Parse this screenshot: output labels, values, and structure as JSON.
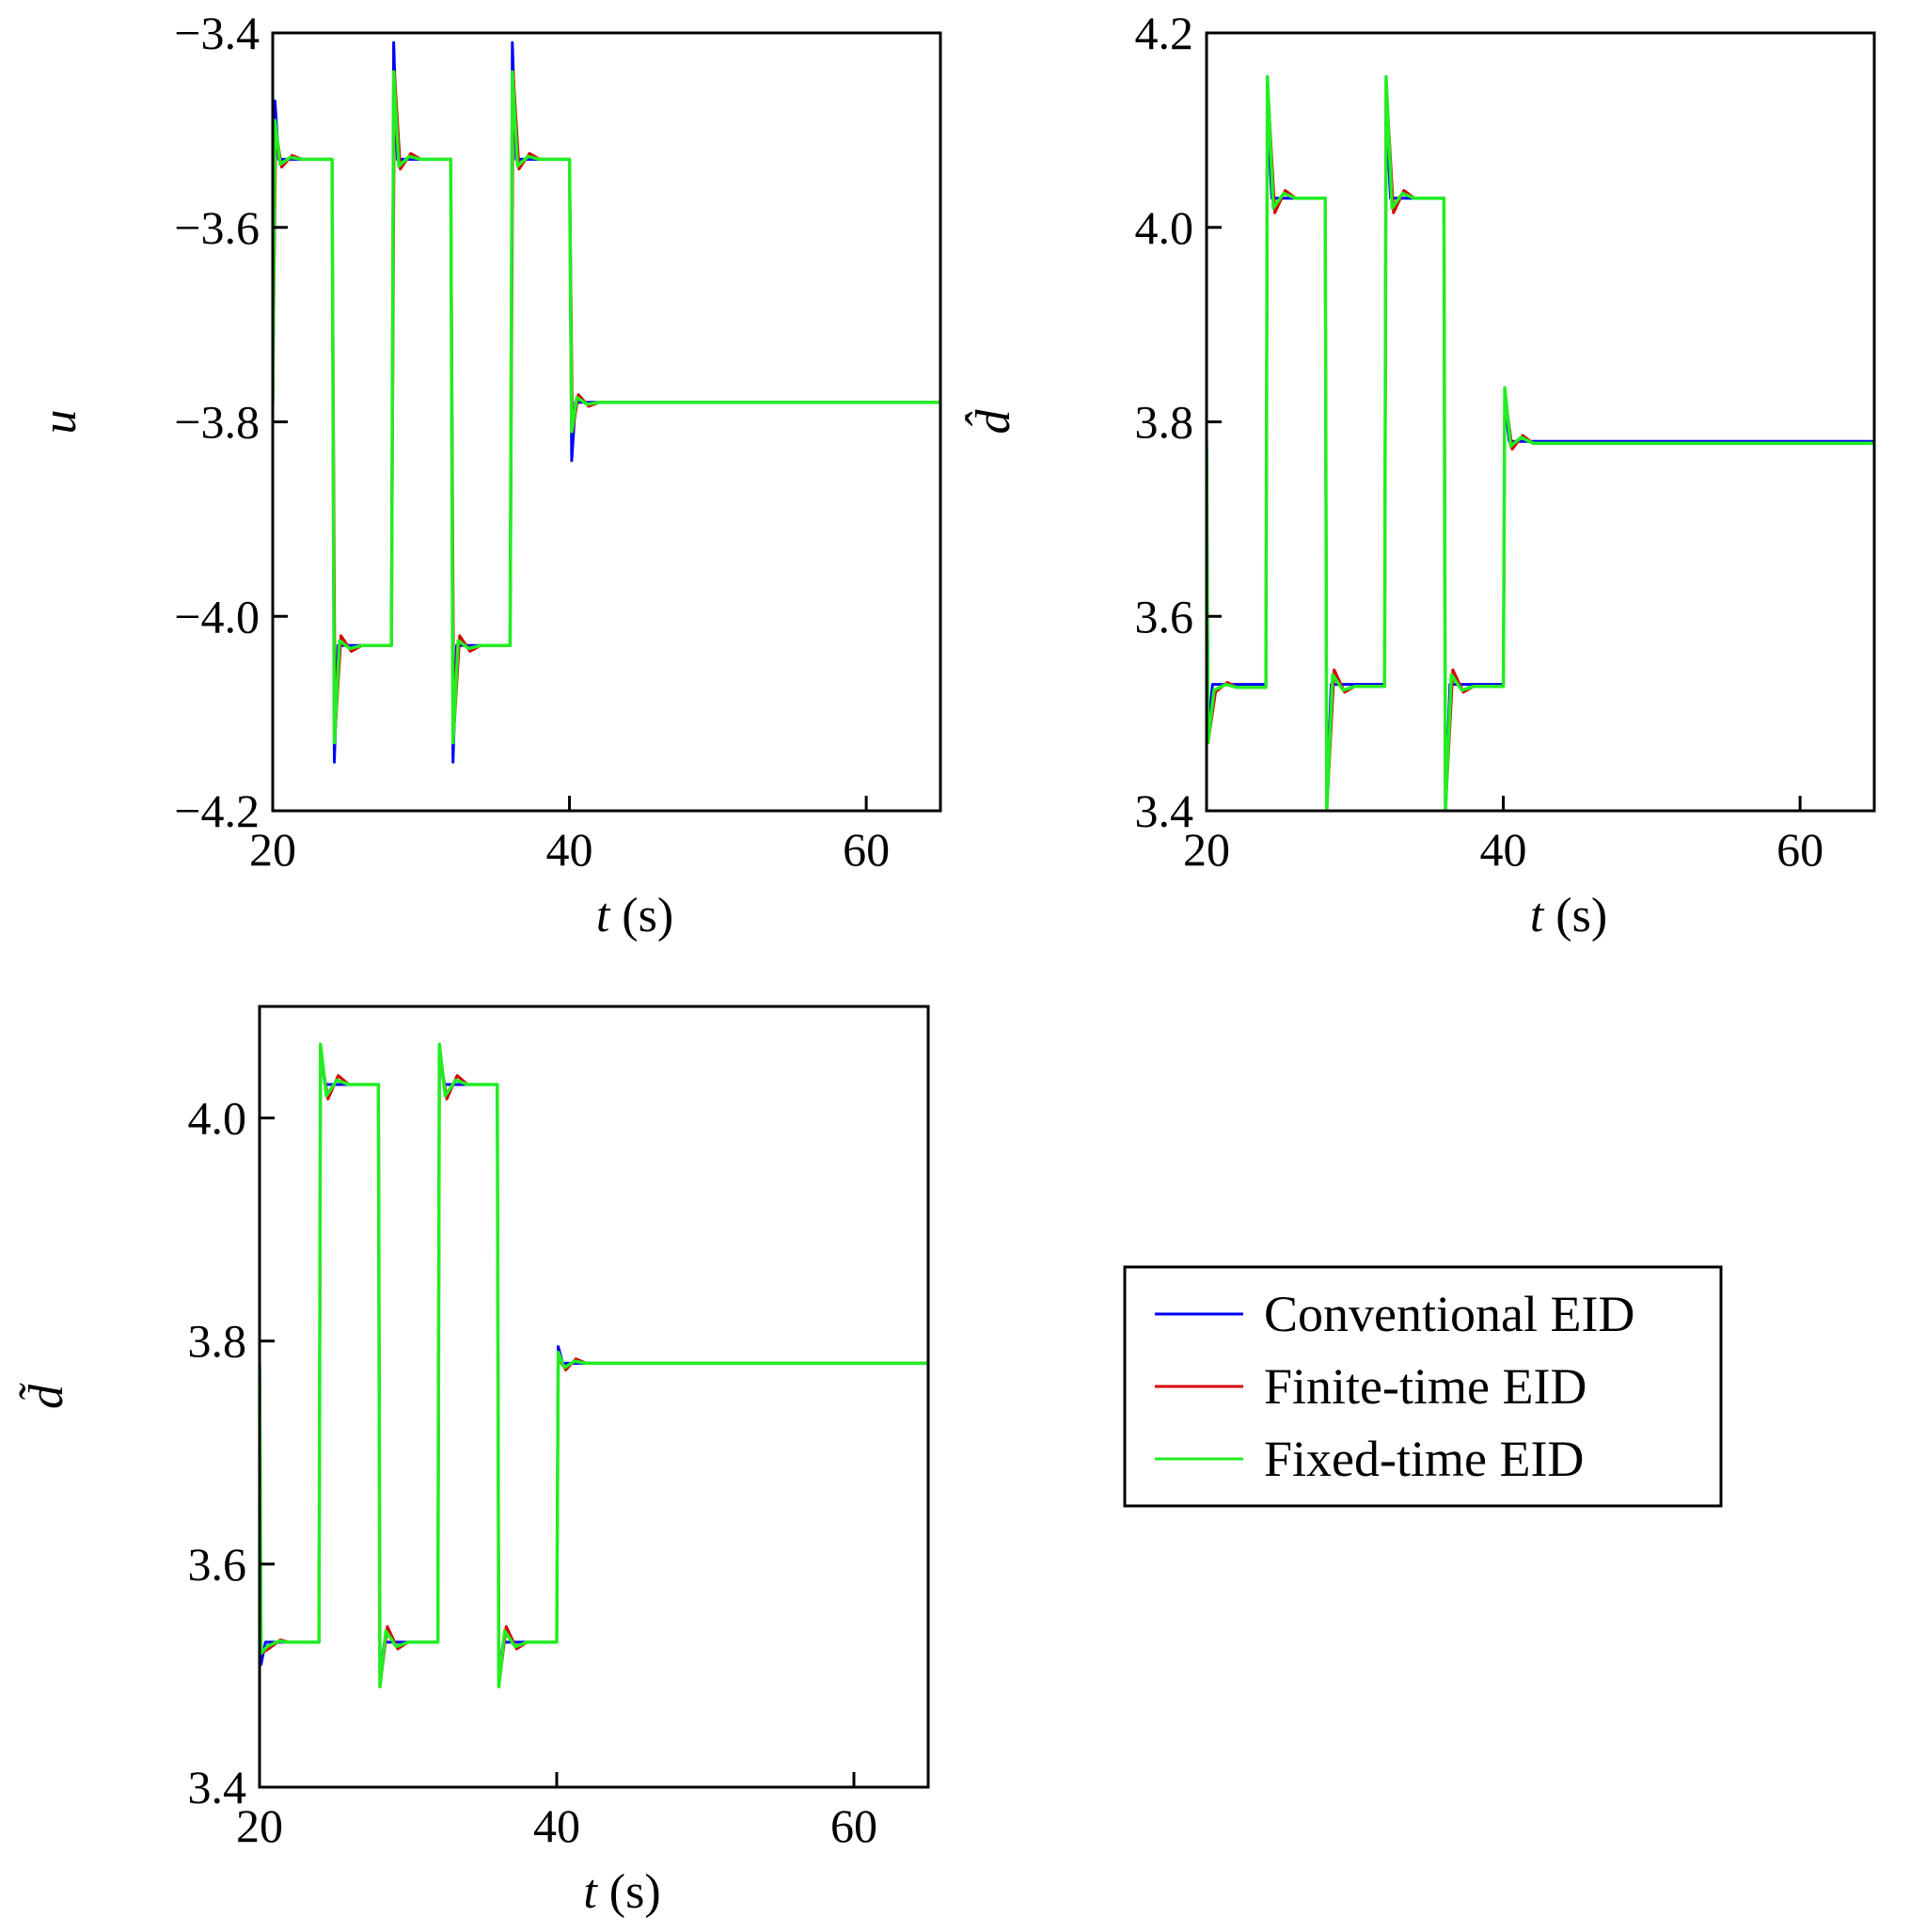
{
  "chart_data": [
    {
      "type": "line",
      "panel": "top-left",
      "ylabel": "u",
      "xlabel": "t (s)",
      "xlim": [
        20,
        65
      ],
      "ylim": [
        -4.2,
        -3.4
      ],
      "xticks": [
        20,
        40,
        60
      ],
      "xtick_labels": [
        "20",
        "40",
        "60"
      ],
      "yticks": [
        -3.4,
        -3.6,
        -3.8,
        -4.0,
        -4.2
      ],
      "ytick_labels": [
        "−3.4",
        "−3.6",
        "−3.8",
        "−4.0",
        "−4.2"
      ],
      "grid": false,
      "series": [
        {
          "name": "Conventional EID",
          "color": "#0000ff",
          "points": [
            [
              20,
              -3.78
            ],
            [
              20.15,
              -3.47
            ],
            [
              20.4,
              -3.53
            ],
            [
              24,
              -3.53
            ],
            [
              24.15,
              -4.15
            ],
            [
              24.4,
              -4.03
            ],
            [
              28,
              -4.03
            ],
            [
              28.15,
              -3.41
            ],
            [
              28.4,
              -3.53
            ],
            [
              32,
              -3.53
            ],
            [
              32.15,
              -4.15
            ],
            [
              32.4,
              -4.03
            ],
            [
              36,
              -4.03
            ],
            [
              36.15,
              -3.41
            ],
            [
              36.4,
              -3.53
            ],
            [
              40,
              -3.53
            ],
            [
              40.15,
              -3.84
            ],
            [
              40.4,
              -3.78
            ],
            [
              65,
              -3.78
            ]
          ]
        },
        {
          "name": "Finite-time EID",
          "color": "#d40000",
          "points": [
            [
              20,
              -3.78
            ],
            [
              20.2,
              -3.5
            ],
            [
              20.6,
              -3.538
            ],
            [
              21.3,
              -3.526
            ],
            [
              22,
              -3.53
            ],
            [
              24,
              -3.53
            ],
            [
              24.2,
              -4.12
            ],
            [
              24.6,
              -4.02
            ],
            [
              25.3,
              -4.036
            ],
            [
              26,
              -4.03
            ],
            [
              28,
              -4.03
            ],
            [
              28.2,
              -3.44
            ],
            [
              28.6,
              -3.54
            ],
            [
              29.3,
              -3.524
            ],
            [
              30,
              -3.53
            ],
            [
              32,
              -3.53
            ],
            [
              32.2,
              -4.12
            ],
            [
              32.6,
              -4.02
            ],
            [
              33.3,
              -4.036
            ],
            [
              34,
              -4.03
            ],
            [
              36,
              -4.03
            ],
            [
              36.2,
              -3.44
            ],
            [
              36.6,
              -3.54
            ],
            [
              37.3,
              -3.524
            ],
            [
              38,
              -3.53
            ],
            [
              40,
              -3.53
            ],
            [
              40.2,
              -3.81
            ],
            [
              40.6,
              -3.772
            ],
            [
              41.3,
              -3.784
            ],
            [
              42,
              -3.78
            ],
            [
              65,
              -3.78
            ]
          ]
        },
        {
          "name": "Fixed-time EID",
          "color": "#22ee22",
          "points": [
            [
              20,
              -3.78
            ],
            [
              20.15,
              -3.49
            ],
            [
              20.5,
              -3.535
            ],
            [
              21.2,
              -3.528
            ],
            [
              22,
              -3.53
            ],
            [
              24,
              -3.53
            ],
            [
              24.15,
              -4.13
            ],
            [
              24.5,
              -4.025
            ],
            [
              25.2,
              -4.033
            ],
            [
              26,
              -4.03
            ],
            [
              28,
              -4.03
            ],
            [
              28.15,
              -3.44
            ],
            [
              28.5,
              -3.537
            ],
            [
              29.2,
              -3.527
            ],
            [
              30,
              -3.53
            ],
            [
              32,
              -3.53
            ],
            [
              32.15,
              -4.13
            ],
            [
              32.5,
              -4.025
            ],
            [
              33.2,
              -4.033
            ],
            [
              34,
              -4.03
            ],
            [
              36,
              -4.03
            ],
            [
              36.15,
              -3.44
            ],
            [
              36.5,
              -3.537
            ],
            [
              37.2,
              -3.527
            ],
            [
              38,
              -3.53
            ],
            [
              40,
              -3.53
            ],
            [
              40.15,
              -3.81
            ],
            [
              40.5,
              -3.775
            ],
            [
              41.2,
              -3.782
            ],
            [
              42,
              -3.78
            ],
            [
              65,
              -3.78
            ]
          ]
        }
      ]
    },
    {
      "type": "line",
      "panel": "top-right",
      "ylabel": "d̂",
      "xlabel": "t (s)",
      "xlim": [
        20,
        65
      ],
      "ylim": [
        3.4,
        4.2
      ],
      "xticks": [
        20,
        40,
        60
      ],
      "xtick_labels": [
        "20",
        "40",
        "60"
      ],
      "yticks": [
        4.2,
        4.0,
        3.8,
        3.6,
        3.4
      ],
      "ytick_labels": [
        "4.2",
        "4.0",
        "3.8",
        "3.6",
        "3.4"
      ],
      "grid": false,
      "series": [
        {
          "name": "Conventional EID",
          "color": "#0000ff",
          "points": [
            [
              20,
              3.78
            ],
            [
              20.1,
              3.48
            ],
            [
              20.4,
              3.53
            ],
            [
              24,
              3.53
            ],
            [
              24.1,
              4.12
            ],
            [
              24.4,
              4.03
            ],
            [
              28,
              4.03
            ],
            [
              28.1,
              3.4
            ],
            [
              28.4,
              3.53
            ],
            [
              32,
              3.53
            ],
            [
              32.1,
              4.12
            ],
            [
              32.4,
              4.03
            ],
            [
              36,
              4.03
            ],
            [
              36.1,
              3.4
            ],
            [
              36.4,
              3.53
            ],
            [
              40,
              3.53
            ],
            [
              40.1,
              3.82
            ],
            [
              40.4,
              3.78
            ],
            [
              65,
              3.78
            ]
          ]
        },
        {
          "name": "Finite-time EID",
          "color": "#d40000",
          "points": [
            [
              20,
              3.78
            ],
            [
              20.1,
              3.47
            ],
            [
              20.6,
              3.522
            ],
            [
              21.4,
              3.532
            ],
            [
              22,
              3.527
            ],
            [
              24,
              3.527
            ],
            [
              24.1,
              4.15
            ],
            [
              24.6,
              4.015
            ],
            [
              25.3,
              4.038
            ],
            [
              26,
              4.03
            ],
            [
              28,
              4.03
            ],
            [
              28.1,
              3.4
            ],
            [
              28.6,
              3.545
            ],
            [
              29.3,
              3.522
            ],
            [
              30,
              3.528
            ],
            [
              32,
              3.528
            ],
            [
              32.1,
              4.15
            ],
            [
              32.6,
              4.015
            ],
            [
              33.3,
              4.038
            ],
            [
              34,
              4.03
            ],
            [
              36,
              4.03
            ],
            [
              36.1,
              3.4
            ],
            [
              36.6,
              3.545
            ],
            [
              37.3,
              3.522
            ],
            [
              38,
              3.528
            ],
            [
              40,
              3.528
            ],
            [
              40.1,
              3.83
            ],
            [
              40.6,
              3.772
            ],
            [
              41.3,
              3.786
            ],
            [
              42,
              3.778
            ],
            [
              65,
              3.778
            ]
          ]
        },
        {
          "name": "Fixed-time EID",
          "color": "#22ee22",
          "points": [
            [
              20,
              3.78
            ],
            [
              20.1,
              3.47
            ],
            [
              20.5,
              3.524
            ],
            [
              21.3,
              3.53
            ],
            [
              22,
              3.527
            ],
            [
              24,
              3.527
            ],
            [
              24.1,
              4.155
            ],
            [
              24.5,
              4.02
            ],
            [
              25.2,
              4.035
            ],
            [
              26,
              4.03
            ],
            [
              28,
              4.03
            ],
            [
              28.1,
              3.4
            ],
            [
              28.5,
              3.54
            ],
            [
              29.2,
              3.524
            ],
            [
              30,
              3.528
            ],
            [
              32,
              3.528
            ],
            [
              32.1,
              4.155
            ],
            [
              32.5,
              4.02
            ],
            [
              33.2,
              4.035
            ],
            [
              34,
              4.03
            ],
            [
              36,
              4.03
            ],
            [
              36.1,
              3.4
            ],
            [
              36.5,
              3.54
            ],
            [
              37.2,
              3.524
            ],
            [
              38,
              3.528
            ],
            [
              40,
              3.528
            ],
            [
              40.1,
              3.835
            ],
            [
              40.5,
              3.775
            ],
            [
              41.2,
              3.784
            ],
            [
              42,
              3.778
            ],
            [
              65,
              3.778
            ]
          ]
        }
      ]
    },
    {
      "type": "line",
      "panel": "bottom-left",
      "ylabel": "d̃",
      "xlabel": "t (s)",
      "xlim": [
        20,
        65
      ],
      "ylim": [
        3.4,
        4.1
      ],
      "xticks": [
        20,
        40,
        60
      ],
      "xtick_labels": [
        "20",
        "40",
        "60"
      ],
      "yticks": [
        4.0,
        3.8,
        3.6,
        3.4
      ],
      "ytick_labels": [
        "4.0",
        "3.8",
        "3.6",
        "3.4"
      ],
      "grid": false,
      "series": [
        {
          "name": "Conventional EID",
          "color": "#0000ff",
          "points": [
            [
              20,
              3.78
            ],
            [
              20.1,
              3.51
            ],
            [
              20.4,
              3.53
            ],
            [
              24,
              3.53
            ],
            [
              24.1,
              4.06
            ],
            [
              24.4,
              4.03
            ],
            [
              28,
              4.03
            ],
            [
              28.1,
              3.5
            ],
            [
              28.4,
              3.53
            ],
            [
              32,
              3.53
            ],
            [
              32.1,
              4.06
            ],
            [
              32.4,
              4.03
            ],
            [
              36,
              4.03
            ],
            [
              36.1,
              3.5
            ],
            [
              36.4,
              3.53
            ],
            [
              40,
              3.53
            ],
            [
              40.1,
              3.795
            ],
            [
              40.4,
              3.78
            ],
            [
              65,
              3.78
            ]
          ]
        },
        {
          "name": "Finite-time EID",
          "color": "#d40000",
          "points": [
            [
              20,
              3.78
            ],
            [
              20.1,
              3.52
            ],
            [
              20.6,
              3.524
            ],
            [
              21.4,
              3.532
            ],
            [
              22,
              3.53
            ],
            [
              24,
              3.53
            ],
            [
              24.1,
              4.06
            ],
            [
              24.6,
              4.017
            ],
            [
              25.3,
              4.038
            ],
            [
              26,
              4.03
            ],
            [
              28,
              4.03
            ],
            [
              28.1,
              3.49
            ],
            [
              28.6,
              3.544
            ],
            [
              29.3,
              3.524
            ],
            [
              30,
              3.53
            ],
            [
              32,
              3.53
            ],
            [
              32.1,
              4.06
            ],
            [
              32.6,
              4.017
            ],
            [
              33.3,
              4.038
            ],
            [
              34,
              4.03
            ],
            [
              36,
              4.03
            ],
            [
              36.1,
              3.49
            ],
            [
              36.6,
              3.544
            ],
            [
              37.3,
              3.524
            ],
            [
              38,
              3.53
            ],
            [
              40,
              3.53
            ],
            [
              40.1,
              3.785
            ],
            [
              40.6,
              3.774
            ],
            [
              41.3,
              3.784
            ],
            [
              42,
              3.78
            ],
            [
              65,
              3.78
            ]
          ]
        },
        {
          "name": "Fixed-time EID",
          "color": "#22ee22",
          "points": [
            [
              20,
              3.78
            ],
            [
              20.1,
              3.52
            ],
            [
              20.5,
              3.526
            ],
            [
              21.3,
              3.531
            ],
            [
              22,
              3.53
            ],
            [
              24,
              3.53
            ],
            [
              24.1,
              4.066
            ],
            [
              24.5,
              4.02
            ],
            [
              25.2,
              4.034
            ],
            [
              26,
              4.03
            ],
            [
              28,
              4.03
            ],
            [
              28.1,
              3.49
            ],
            [
              28.5,
              3.54
            ],
            [
              29.2,
              3.526
            ],
            [
              30,
              3.53
            ],
            [
              32,
              3.53
            ],
            [
              32.1,
              4.066
            ],
            [
              32.5,
              4.02
            ],
            [
              33.2,
              4.034
            ],
            [
              34,
              4.03
            ],
            [
              36,
              4.03
            ],
            [
              36.1,
              3.49
            ],
            [
              36.5,
              3.54
            ],
            [
              37.2,
              3.526
            ],
            [
              38,
              3.53
            ],
            [
              40,
              3.53
            ],
            [
              40.1,
              3.79
            ],
            [
              40.5,
              3.776
            ],
            [
              41.2,
              3.782
            ],
            [
              42,
              3.78
            ],
            [
              65,
              3.78
            ]
          ]
        }
      ]
    }
  ],
  "legend": {
    "placement": "bottom-right",
    "entries": [
      {
        "label": "Conventional EID",
        "color": "#0000ff"
      },
      {
        "label": "Finite-time EID",
        "color": "#d40000"
      },
      {
        "label": "Fixed-time EID",
        "color": "#22ee22"
      }
    ]
  }
}
